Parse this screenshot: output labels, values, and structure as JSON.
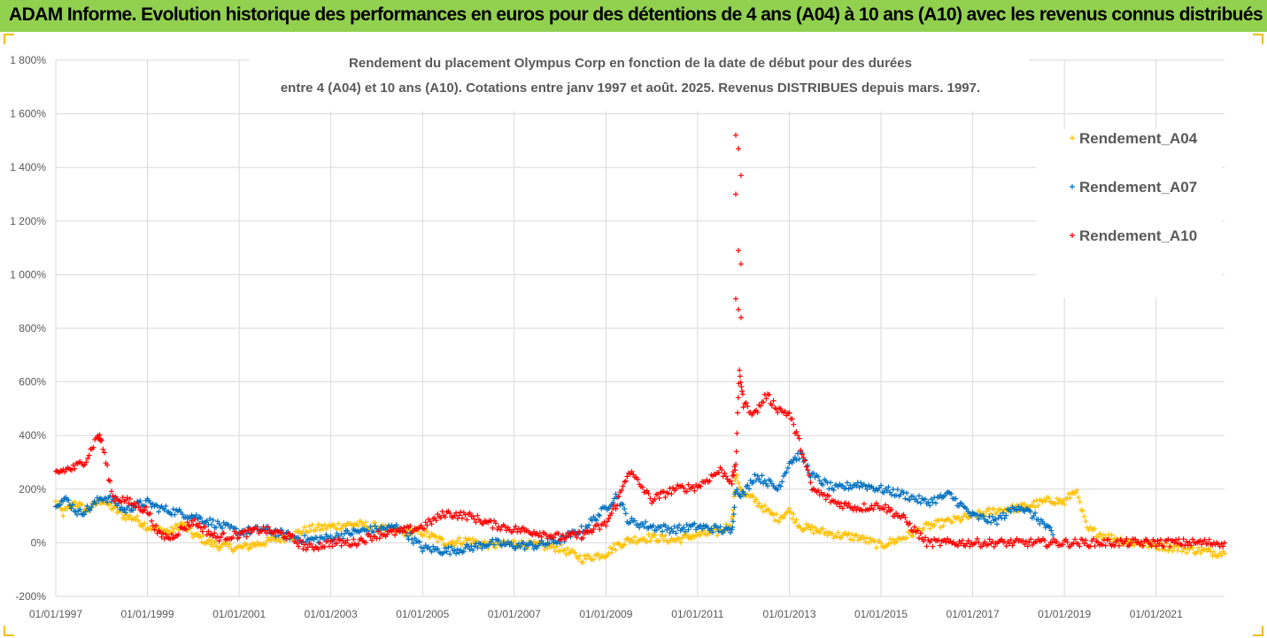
{
  "banner": {
    "title": "ADAM Informe. Evolution historique des performances en euros pour des détentions de 4 ans (A04) à 10 ans (A10) avec les revenus connus distribués"
  },
  "colors": {
    "banner_bg": "#92d050",
    "A04": "#ffc000",
    "A07": "#0070c0",
    "A10": "#ff0000",
    "grid": "#d9d9d9"
  },
  "chart_data": {
    "type": "scatter",
    "title_line1": "Rendement du placement Olympus Corp en fonction de la date de début pour des durées",
    "title_line2": "entre 4 (A04) et 10 ans (A10). Cotations entre janv 1997 et août. 2025. Revenus DISTRIBUES depuis mars. 1997.",
    "xlabel": "",
    "ylabel": "",
    "x_range": [
      "1997-01-01",
      "2022-06-30"
    ],
    "y_range": [
      -200,
      1800
    ],
    "y_ticks": [
      -200,
      0,
      200,
      400,
      600,
      800,
      1000,
      1200,
      1400,
      1600,
      1800
    ],
    "y_tick_labels": [
      "-200%",
      "0%",
      "200%",
      "400%",
      "600%",
      "800%",
      "1 000%",
      "1 200%",
      "1 400%",
      "1 600%",
      "1 800%"
    ],
    "x_ticks": [
      "1997-01-01",
      "1999-01-01",
      "2001-01-01",
      "2003-01-01",
      "2005-01-01",
      "2007-01-01",
      "2009-01-01",
      "2011-01-01",
      "2013-01-01",
      "2015-01-01",
      "2017-01-01",
      "2019-01-01",
      "2021-01-01"
    ],
    "x_tick_labels": [
      "01/01/1997",
      "01/01/1999",
      "01/01/2001",
      "01/01/2003",
      "01/01/2005",
      "01/01/2007",
      "01/01/2009",
      "01/01/2011",
      "01/01/2013",
      "01/01/2015",
      "01/01/2017",
      "01/01/2019",
      "01/01/2021"
    ],
    "grid": "horizontal",
    "legend_position": "right",
    "series": [
      {
        "name": "Rendement_A04",
        "color": "#ffc000",
        "x": [
          "1997-01-01",
          "1997-03-01",
          "1997-06-01",
          "1997-09-01",
          "1998-01-01",
          "1998-04-01",
          "1998-07-01",
          "1998-10-01",
          "1999-01-01",
          "1999-04-01",
          "1999-07-01",
          "1999-10-01",
          "2000-01-01",
          "2000-04-01",
          "2000-07-01",
          "2001-01-01",
          "2001-07-01",
          "2002-01-01",
          "2002-07-01",
          "2003-01-01",
          "2003-07-01",
          "2004-01-01",
          "2004-07-01",
          "2005-01-01",
          "2005-07-01",
          "2006-01-01",
          "2006-07-01",
          "2007-01-01",
          "2007-07-01",
          "2008-01-01",
          "2008-07-01",
          "2009-01-01",
          "2009-04-01",
          "2009-07-01",
          "2010-01-01",
          "2010-07-01",
          "2011-01-01",
          "2011-07-01",
          "2011-10-01",
          "2011-11-01",
          "2012-01-01",
          "2012-04-01",
          "2012-07-01",
          "2012-10-01",
          "2013-01-01",
          "2013-04-01",
          "2013-07-01",
          "2014-01-01",
          "2014-07-01",
          "2015-01-01",
          "2015-07-01",
          "2016-01-01",
          "2016-07-01",
          "2017-01-01",
          "2017-07-01",
          "2018-01-01",
          "2018-07-01",
          "2018-10-01",
          "2019-01-01",
          "2019-04-01",
          "2019-07-01",
          "2020-01-01",
          "2020-07-01",
          "2021-01-01",
          "2021-07-01",
          "2022-01-01",
          "2022-06-30"
        ],
        "values": [
          150,
          110,
          150,
          120,
          160,
          130,
          100,
          90,
          60,
          50,
          40,
          70,
          30,
          10,
          -10,
          -20,
          0,
          20,
          50,
          60,
          70,
          60,
          40,
          40,
          0,
          10,
          -10,
          0,
          -10,
          -20,
          -60,
          -40,
          -10,
          10,
          20,
          10,
          30,
          40,
          80,
          250,
          180,
          160,
          120,
          90,
          120,
          60,
          50,
          30,
          20,
          -10,
          20,
          60,
          80,
          100,
          120,
          130,
          150,
          160,
          150,
          200,
          50,
          20,
          0,
          -10,
          -20,
          -30,
          -40
        ]
      },
      {
        "name": "Rendement_A07",
        "color": "#0070c0",
        "x": [
          "1997-01-01",
          "1997-04-01",
          "1997-07-01",
          "1997-10-01",
          "1998-01-01",
          "1998-04-01",
          "1998-07-01",
          "1998-10-01",
          "1999-01-01",
          "1999-04-01",
          "1999-07-01",
          "2000-01-01",
          "2000-07-01",
          "2001-01-01",
          "2001-07-01",
          "2002-01-01",
          "2002-07-01",
          "2003-01-01",
          "2003-07-01",
          "2004-01-01",
          "2004-07-01",
          "2005-01-01",
          "2005-07-01",
          "2006-01-01",
          "2006-07-01",
          "2007-01-01",
          "2007-07-01",
          "2008-01-01",
          "2008-07-01",
          "2009-01-01",
          "2009-04-01",
          "2009-07-01",
          "2010-01-01",
          "2010-07-01",
          "2011-01-01",
          "2011-07-01",
          "2011-10-01",
          "2011-11-01",
          "2012-01-01",
          "2012-04-01",
          "2012-07-01",
          "2012-10-01",
          "2013-01-01",
          "2013-04-01",
          "2013-07-01",
          "2014-01-01",
          "2014-07-01",
          "2015-01-01",
          "2015-07-01",
          "2016-01-01",
          "2016-07-01",
          "2017-01-01",
          "2017-07-01",
          "2018-01-01",
          "2018-07-01",
          "2018-10-01"
        ],
        "values": [
          150,
          160,
          110,
          130,
          170,
          160,
          120,
          140,
          150,
          130,
          120,
          100,
          70,
          40,
          50,
          30,
          10,
          20,
          40,
          50,
          60,
          -20,
          -30,
          -20,
          0,
          -10,
          -10,
          10,
          50,
          130,
          180,
          80,
          60,
          50,
          60,
          50,
          40,
          200,
          180,
          250,
          230,
          200,
          300,
          330,
          250,
          200,
          220,
          200,
          180,
          150,
          180,
          100,
          80,
          140,
          80,
          30
        ]
      },
      {
        "name": "Rendement_A10",
        "color": "#ff0000",
        "x": [
          "1997-01-01",
          "1997-03-01",
          "1997-06-01",
          "1997-09-01",
          "1997-12-01",
          "1998-01-01",
          "1998-04-01",
          "1998-07-01",
          "1998-10-01",
          "1999-01-01",
          "1999-04-01",
          "1999-07-01",
          "1999-10-01",
          "2000-01-01",
          "2000-07-01",
          "2001-01-01",
          "2001-07-01",
          "2002-01-01",
          "2002-07-01",
          "2003-01-01",
          "2003-07-01",
          "2004-01-01",
          "2004-07-01",
          "2005-01-01",
          "2005-07-01",
          "2006-01-01",
          "2006-07-01",
          "2007-01-01",
          "2007-07-01",
          "2008-01-01",
          "2008-07-01",
          "2009-01-01",
          "2009-04-01",
          "2009-07-01",
          "2010-01-01",
          "2010-07-01",
          "2011-01-01",
          "2011-07-01",
          "2011-10-01",
          "2011-11-01",
          "2011-12-01",
          "2012-01-01",
          "2012-04-01",
          "2012-07-01",
          "2012-10-01",
          "2013-01-01",
          "2013-04-01",
          "2013-07-01",
          "2014-01-01",
          "2014-07-01",
          "2015-01-01",
          "2015-07-01",
          "2016-01-01",
          "2017-01-01",
          "2018-01-01",
          "2019-01-01",
          "2020-01-01",
          "2021-01-01",
          "2022-06-30"
        ],
        "values": [
          260,
          270,
          280,
          310,
          400,
          380,
          170,
          160,
          140,
          120,
          30,
          20,
          50,
          80,
          20,
          30,
          50,
          30,
          -20,
          0,
          0,
          30,
          40,
          60,
          110,
          100,
          70,
          50,
          40,
          20,
          30,
          70,
          150,
          270,
          160,
          200,
          210,
          270,
          230,
          290,
          650,
          520,
          480,
          550,
          500,
          480,
          360,
          200,
          150,
          130,
          140,
          90,
          0,
          0,
          0,
          0,
          0,
          0,
          0
        ]
      }
    ],
    "outliers_A10": {
      "x": [
        "2011-11-01",
        "2011-11-01",
        "2011-11-01",
        "2011-11-01",
        "2011-11-01",
        "2011-11-01",
        "2011-11-01",
        "2011-11-01",
        "2011-11-01"
      ],
      "values": [
        1520,
        1470,
        1370,
        1300,
        1090,
        1040,
        910,
        870,
        840
      ]
    }
  }
}
